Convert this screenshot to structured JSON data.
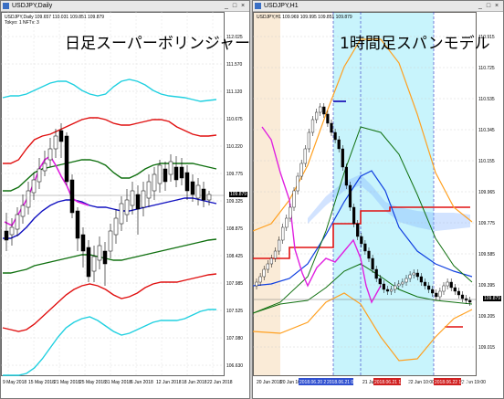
{
  "left_window": {
    "title": "USDJPY,Daily",
    "info_line1": "USDJPY,Daily  109.657 110.031 109.851 109.879",
    "info_line2": "Tokyo: 1 NFTv: 3",
    "overlay_title": "日足スーパーボリンジャー",
    "price_labels": [
      "112.025",
      "111.570",
      "111.120",
      "110.675",
      "110.220",
      "109.775",
      "109.325",
      "108.875",
      "108.425",
      "107.985",
      "107.525",
      "107.080",
      "106.630"
    ],
    "current_price": "109.879",
    "date_labels": [
      "9 May 2018",
      "15 May 2018",
      "21 May 2018",
      "25 May 2018",
      "31 May 2018",
      "6 Jun 2018",
      "12 Jun 2018",
      "18 Jun 2018",
      "22 Jun 2018"
    ]
  },
  "right_window": {
    "title": "USDJPY,H1",
    "info_line1": "USDJPY,H1  109.969 109.995 109.851 109.879",
    "overlay_title": "1時間足スパンモデル",
    "price_labels": [
      "110.915",
      "110.725",
      "110.535",
      "110.345",
      "110.155",
      "109.965",
      "109.775",
      "109.585",
      "109.395",
      "109.205",
      "109.015"
    ],
    "current_price": "109.879",
    "date_labels": [
      "20 Jun 2018",
      "20 Jun 16:00",
      "21 Jun 12:00",
      "22 Jun 10:00",
      "22 Jun 19:00"
    ],
    "date_badges": [
      "2018.06.20 20:00",
      "2018.06.21 04:00",
      "2018.06.21 19:00",
      "2018.06.22 14:00"
    ]
  },
  "window_buttons": [
    "_",
    "□",
    "×"
  ],
  "colors": {
    "band_sigma3_upper": "#20d0e0",
    "band_sigma2": "#e01010",
    "band_sigma1": "#107010",
    "center_line": "#1010c0",
    "lagging_span": "#e020e0",
    "span_red": "#e01010",
    "span_blue": "#1040e0",
    "bollinger_orange": "#ffa020",
    "cyan_bg": "#c8f4fc",
    "beige_bg": "#faebd7"
  }
}
